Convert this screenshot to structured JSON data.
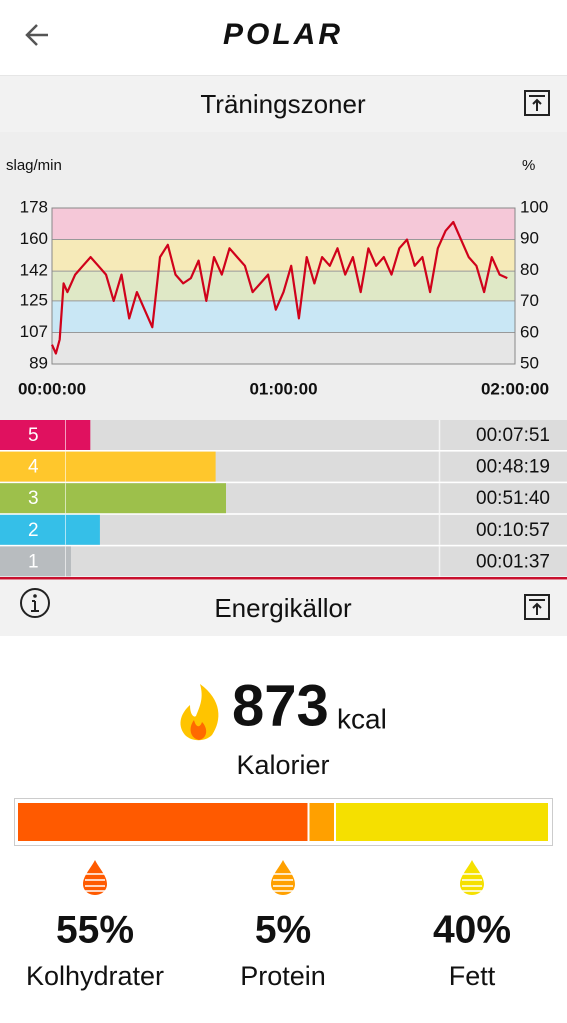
{
  "header": {
    "logo": "POLAR"
  },
  "training": {
    "title": "Träningszoner"
  },
  "chart_data": {
    "type": "line",
    "y_label": "slag/min",
    "y2_label": "%",
    "x": [
      0,
      1,
      2,
      3,
      4,
      6,
      8,
      10,
      12,
      14,
      16,
      18,
      20,
      22,
      24,
      26,
      28,
      30,
      32,
      34,
      36,
      38,
      40,
      42,
      44,
      46,
      48,
      50,
      52,
      54,
      56,
      58,
      60,
      62,
      64,
      66,
      68,
      70,
      72,
      74,
      76,
      78,
      80,
      82,
      84,
      86,
      88,
      90,
      92,
      94,
      96,
      98,
      100,
      102,
      104,
      106,
      108,
      110,
      112,
      114,
      116,
      118
    ],
    "series": [
      {
        "color": "#d0021b",
        "values": [
          100,
          95,
          103,
          135,
          130,
          140,
          145,
          150,
          145,
          140,
          125,
          140,
          115,
          130,
          120,
          110,
          150,
          157,
          140,
          135,
          138,
          148,
          125,
          150,
          140,
          155,
          150,
          145,
          130,
          135,
          140,
          120,
          130,
          145,
          115,
          150,
          135,
          150,
          145,
          155,
          140,
          150,
          130,
          155,
          145,
          150,
          140,
          155,
          160,
          145,
          150,
          130,
          155,
          165,
          170,
          160,
          150,
          145,
          130,
          150,
          140,
          138
        ]
      }
    ],
    "xlim": [
      0,
      120
    ],
    "xticks": [
      {
        "value": 0,
        "label": "00:00:00"
      },
      {
        "value": 60,
        "label": "01:00:00"
      },
      {
        "value": 120,
        "label": "02:00:00"
      }
    ],
    "ylim": [
      89,
      178
    ],
    "yticks": [
      89,
      107,
      125,
      142,
      160,
      178
    ],
    "y2lim": [
      50,
      100
    ],
    "y2ticks": [
      50,
      60,
      70,
      80,
      90,
      100
    ],
    "zone_colors": [
      "#e6e6e6",
      "#c9e7f5",
      "#dfe8c6",
      "#f6eab8",
      "#f5c8d8"
    ],
    "grid": true
  },
  "zones": {
    "rows": [
      {
        "zone": "5",
        "time": "00:07:51",
        "color": "#e0115f"
      },
      {
        "zone": "4",
        "time": "00:48:19",
        "color": "#ffc72c"
      },
      {
        "zone": "3",
        "time": "00:51:40",
        "color": "#9dc04b"
      },
      {
        "zone": "2",
        "time": "00:10:57",
        "color": "#35bfe8"
      },
      {
        "zone": "1",
        "time": "00:01:37",
        "color": "#b8bcbf"
      }
    ]
  },
  "energy": {
    "title": "Energikällor",
    "calories": 873,
    "unit": "kcal",
    "label": "Kalorier",
    "sources": [
      {
        "name": "Kolhydrater",
        "value": 55,
        "label": "55%",
        "color": "#ff5a00"
      },
      {
        "name": "Protein",
        "value": 5,
        "label": "5%",
        "color": "#ffa000"
      },
      {
        "name": "Fett",
        "value": 40,
        "label": "40%",
        "color": "#f5e000"
      }
    ]
  }
}
